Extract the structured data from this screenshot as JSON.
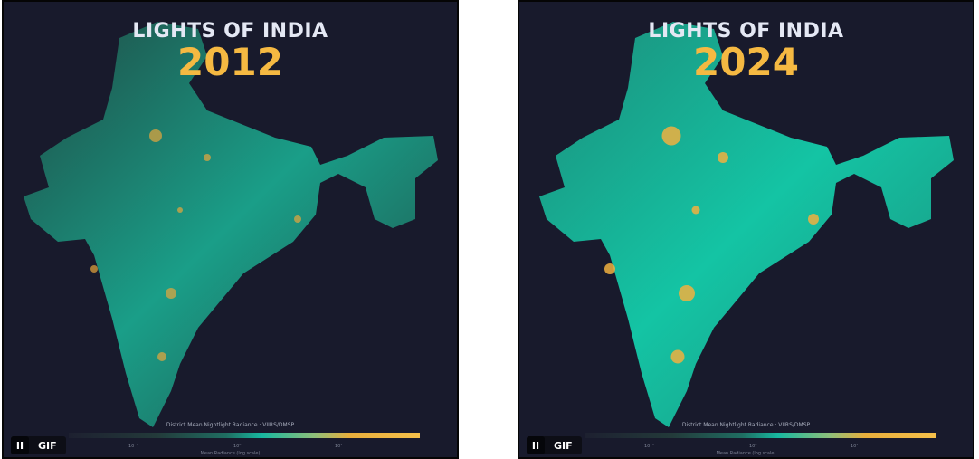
{
  "panels": [
    {
      "title": "LIGHTS OF INDIA",
      "year": "2012",
      "fill_low": "#1f4a44",
      "fill_high": "#1a9e88",
      "hot": "#e7a63c"
    },
    {
      "title": "LIGHTS OF INDIA",
      "year": "2024",
      "fill_low": "#1c8c7a",
      "fill_high": "#14c4a4",
      "hot": "#f0b040"
    }
  ],
  "legend": {
    "caption": "District Mean Nightlight Radiance · VIIRS/DMSP",
    "ticks": [
      "10⁻¹",
      "10⁰",
      "10¹"
    ],
    "axis_label": "Mean Radiance (log scale)"
  },
  "controls": {
    "pause": "II",
    "gif": "GIF"
  }
}
